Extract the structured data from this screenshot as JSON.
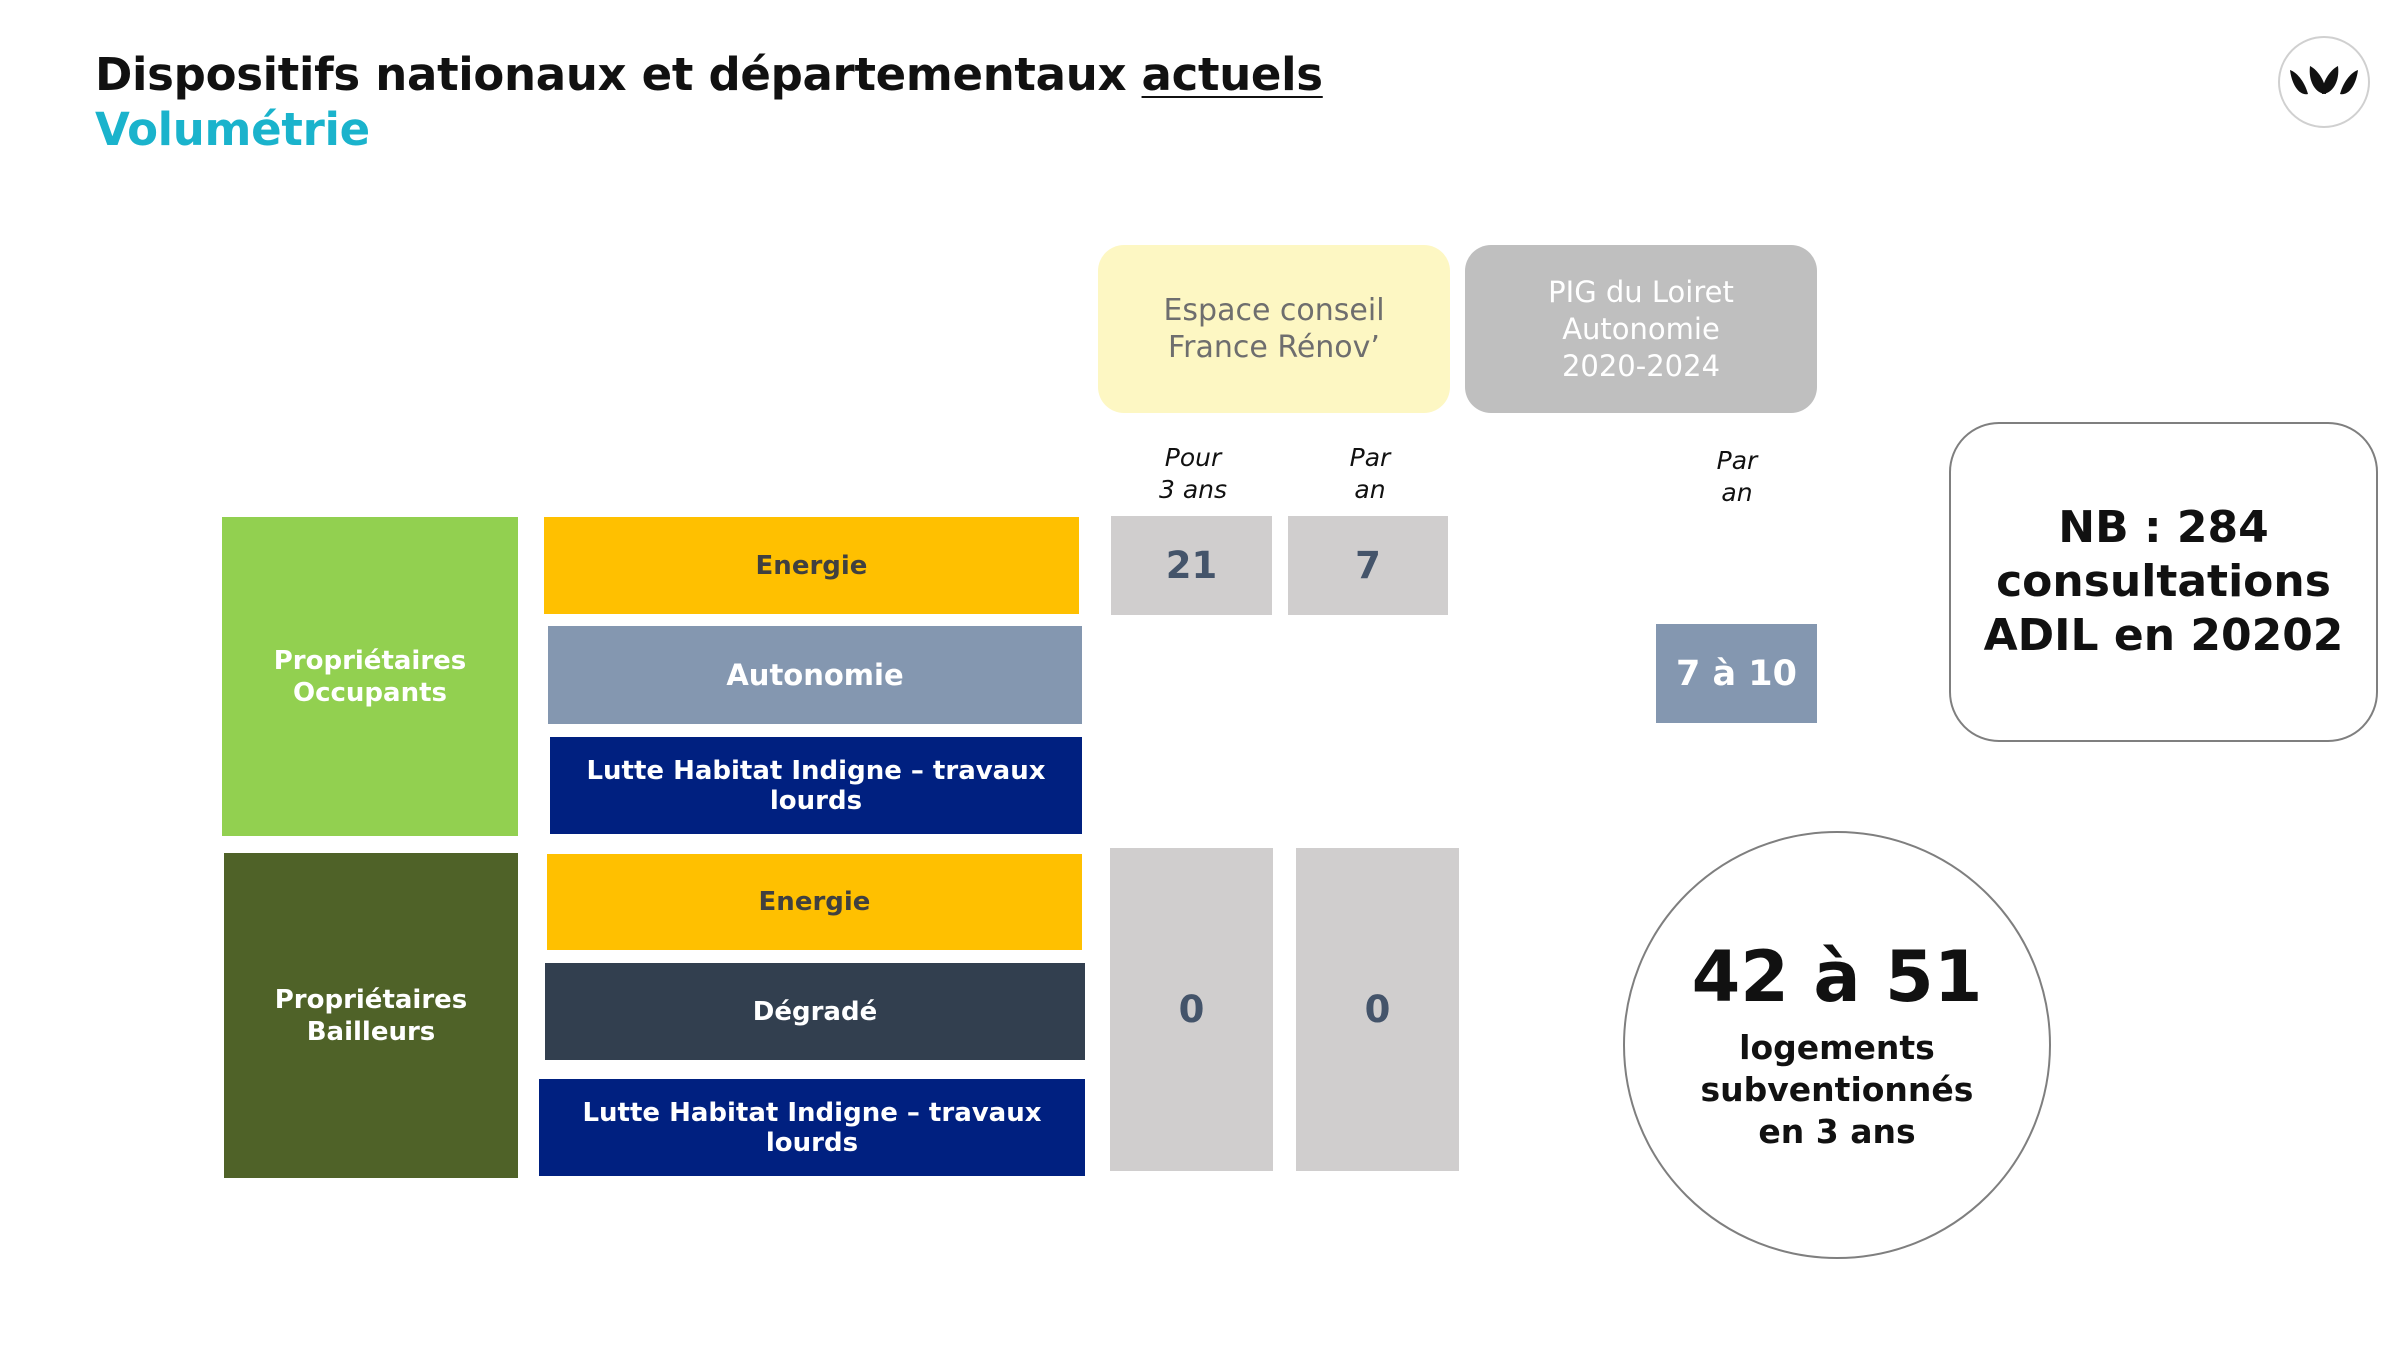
{
  "header": {
    "title_main": "Dispositifs nationaux et départementaux ",
    "title_underlined": "actuels",
    "subtitle": "Volumétrie"
  },
  "logo": {
    "icon": "leaves-logo-icon"
  },
  "columns": {
    "espace": {
      "line1": "Espace conseil",
      "line2": "France Rénov’"
    },
    "pig": {
      "line1": "PIG du Loiret",
      "line2": "Autonomie",
      "line3": "2020-2024"
    },
    "sub_3ans": {
      "line1": "Pour",
      "line2": "3 ans"
    },
    "sub_an": {
      "line1": "Par",
      "line2": "an"
    },
    "sub_pig_an": {
      "line1": "Par",
      "line2": "an"
    }
  },
  "categories": {
    "occupants": {
      "line1": "Propriétaires",
      "line2": "Occupants"
    },
    "bailleurs": {
      "line1": "Propriétaires",
      "line2": "Bailleurs"
    }
  },
  "measures": {
    "po_energie": "Energie",
    "po_autonomie": "Autonomie",
    "po_lhi": "Lutte Habitat Indigne – travaux lourds",
    "pb_energie": "Energie",
    "pb_degrade": "Dégradé",
    "pb_lhi": "Lutte Habitat Indigne – travaux lourds"
  },
  "values": {
    "po_3ans": "21",
    "po_an": "7",
    "pb_3ans": "0",
    "pb_an": "0",
    "pig_autonomie_an": "7 à 10"
  },
  "note": {
    "line1": "NB : 284",
    "line2": "consultations",
    "line3": "ADIL en 20202"
  },
  "summary": {
    "big": "42 à 51",
    "line1": "logements",
    "line2": "subventionnés",
    "line3": "en 3 ans"
  },
  "colors": {
    "subtitle": "#1ab3cc",
    "occupants": "#92d050",
    "bailleurs": "#4f6228",
    "energie": "#ffc000",
    "autonomie": "#8497b0",
    "lhi": "#002080",
    "degrade": "#323f4f",
    "espace_header": "#fdf7c3",
    "pig_header": "#bfbfbf",
    "cell": "#d0cece"
  }
}
